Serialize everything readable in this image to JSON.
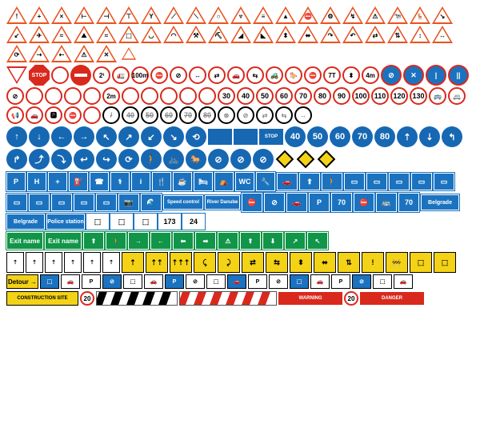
{
  "colors": {
    "warning_red": "#e8531f",
    "prohibition_red": "#d9291c",
    "mandatory_blue": "#1668b3",
    "info_blue": "#1b73c0",
    "motorway_green": "#119548",
    "work_yellow": "#f4d216",
    "black": "#000000",
    "white": "#ffffff",
    "grey": "#888888"
  },
  "sections": {
    "warning": {
      "shape": "triangle",
      "border_color": "#e8531f",
      "fill_color": "#ffffff",
      "size": 26,
      "rows": [
        [
          "!",
          "+",
          "×",
          "⊢",
          "⊣",
          "⊤",
          "Y",
          "⟋",
          "⟍",
          "○",
          "▿",
          "≡",
          "▲",
          "⛔",
          "⚙"
        ],
        [
          "↯",
          "⚠",
          "🐄",
          "🦌",
          "↘",
          "↙",
          "✈",
          "≈",
          "⛰",
          "≈",
          "⬚",
          "◡",
          "◠",
          "⚒",
          "⛏"
        ],
        [
          "◢",
          "◣",
          "⬍",
          "⬌",
          "↷",
          "↶",
          "⇄",
          "⇅",
          "↕",
          "↔",
          "⟳",
          "⇢",
          "⇠",
          "⚠",
          "✕"
        ]
      ]
    },
    "prohibition": {
      "shape": "circle",
      "border_color": "#d9291c",
      "fill_color": "#ffffff",
      "size": 26,
      "yield_label": "",
      "stop_label": "STOP",
      "row1": [
        "2ᵗ",
        "🚛",
        "100m",
        "⛔",
        "⊘",
        "↔",
        "⇄",
        "🚗",
        "⇆",
        "🚜",
        "🐎",
        "⛔",
        "7T",
        "⬍",
        "4m"
      ],
      "row2_special": [
        "",
        "⊘",
        "",
        "",
        "⊘",
        "",
        "",
        "",
        "",
        "2m",
        "",
        "",
        "",
        "",
        ""
      ],
      "speed_limits": [
        "30",
        "40",
        "50",
        "60",
        "70",
        "80",
        "90",
        "100",
        "110",
        "120",
        "130"
      ],
      "row3_extra": [
        "🚌",
        "🚐",
        "📢",
        "🚗",
        "🅿",
        "⛔",
        ""
      ],
      "end_limits": [
        "/",
        "40",
        "50",
        "60",
        "70",
        "80"
      ],
      "row4_extra": [
        "⊗",
        "⊘",
        "⇄",
        "⇆",
        "↔"
      ]
    },
    "mandatory": {
      "shape": "circle-solid",
      "fill_color": "#1668b3",
      "text_color": "#ffffff",
      "size": 26,
      "row1_arrows": [
        "↑",
        "↓",
        "←",
        "→",
        "↖",
        "↗",
        "↙",
        "↘",
        "⟲"
      ],
      "row1_extra": [
        "",
        "",
        "STOP"
      ],
      "min_speeds": [
        "40",
        "50",
        "60",
        "70",
        "80"
      ],
      "row2_arrows": [
        "⇡",
        "⇣",
        "↰",
        "↱",
        "⤴",
        "⤵",
        "↩",
        "↪",
        "⟳"
      ],
      "row3": [
        "🚶",
        "🚲",
        "🐎",
        "⊘",
        "⊘",
        "⊘"
      ]
    },
    "priority_diamond": {
      "border_color": "#000000",
      "fill_color": "#f4d216",
      "size": 16
    },
    "info_rect": {
      "fill_color": "#1b73c0",
      "text_color": "#ffffff",
      "border_color": "#ffffff",
      "items_row1": [
        "P",
        "H",
        "+",
        "⛽",
        "☎",
        "⚕",
        "i",
        "🍴",
        "☕",
        "🛏",
        "⛺",
        "WC",
        "🔧"
      ],
      "items_row2": [
        "🚗",
        "⬆",
        "🚶",
        "▭",
        "▭",
        "▭",
        "▭",
        "▭",
        "▭",
        "▭",
        "▭",
        "▭",
        "▭",
        "📷",
        "🌊"
      ],
      "labels": {
        "speed": "Speed control",
        "river": "River Danube"
      },
      "items_row3": [
        "⛔",
        "⊘",
        "🚗",
        "P",
        "70",
        "⛔",
        "🚌",
        "70"
      ],
      "direction_signs": [
        "Belgrade",
        "Belgrade",
        "Police station"
      ],
      "items_row4_white": [
        "⬚",
        "⬚",
        "⬚",
        "173",
        "24"
      ]
    },
    "motorway": {
      "fill_color": "#119548",
      "text_color": "#ffffff",
      "exit_label": "Exit name",
      "items": [
        "⬆",
        "🚶",
        "→",
        "←",
        "⬅",
        "➡",
        "⚠",
        "⬆",
        "⬇",
        "↗",
        "↖"
      ]
    },
    "roadwork": {
      "fill_color": "#f4d216",
      "border_color": "#000000",
      "lane_signs": [
        "⇡",
        "⇡⇡",
        "⇡⇡⇡",
        "⤹",
        "⤸",
        "⇄",
        "⇆",
        "⬍",
        "⬌",
        "⇅",
        "!",
        "🚧",
        "⬚",
        "⬚"
      ],
      "detour_label": "Detour"
    },
    "barriers": {
      "construction_label": "CONSTRUCTION SITE",
      "speed_20": "20",
      "chevron_colors": [
        "#000000",
        "#ffffff"
      ],
      "hazard_colors": [
        "#d9291c",
        "#ffffff"
      ],
      "warning_label": "WARNING",
      "danger_label": "DANGER"
    }
  }
}
